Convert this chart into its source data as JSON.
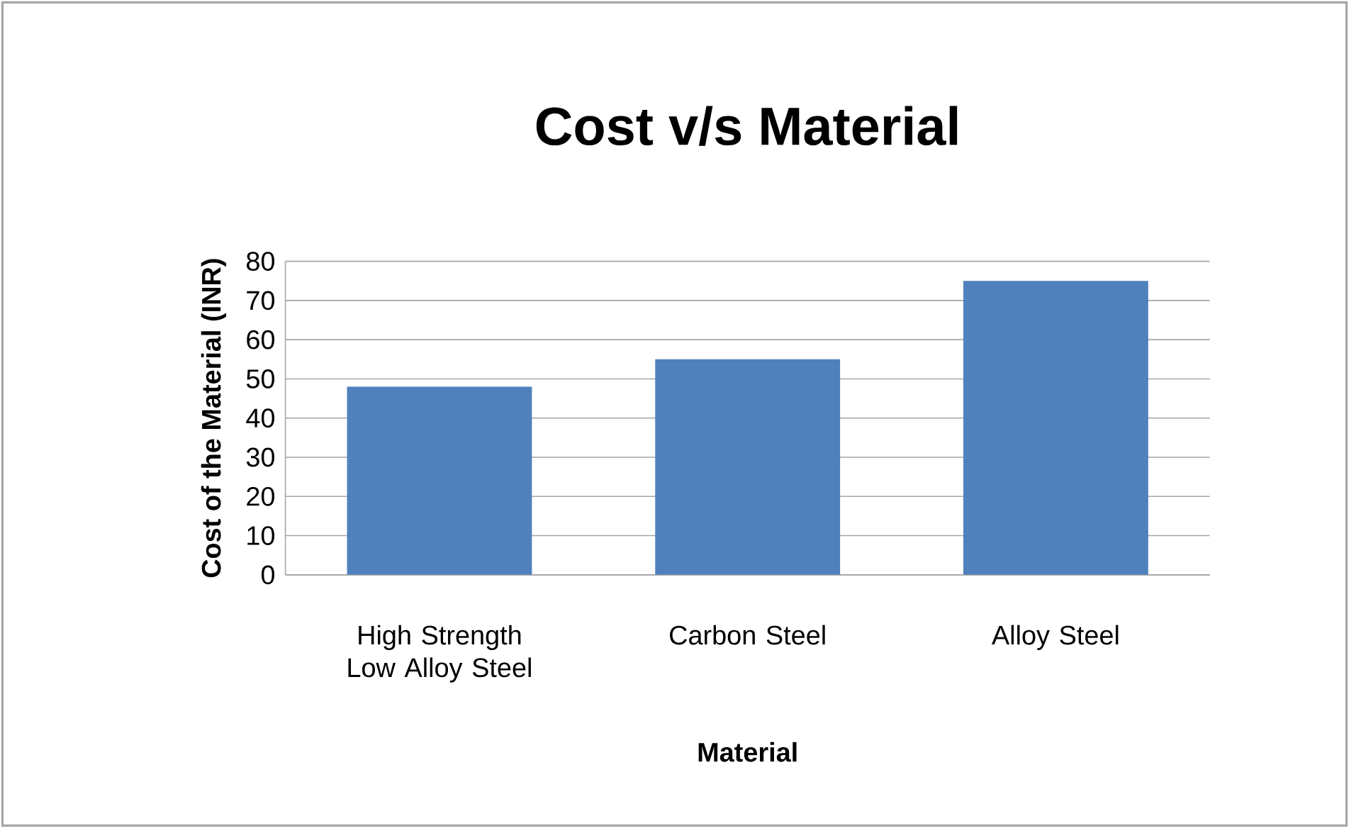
{
  "chart_data": {
    "type": "bar",
    "title": "Cost v/s Material",
    "xlabel": "Material",
    "ylabel": "Cost of the Material (INR)",
    "categories": [
      "High Strength Low Alloy Steel",
      "Carbon Steel",
      "Alloy Steel"
    ],
    "values": [
      48,
      55,
      75
    ],
    "color": "#4f81bd",
    "ylim": [
      0,
      80
    ],
    "yticks": [
      0,
      10,
      20,
      30,
      40,
      50,
      60,
      70,
      80
    ],
    "grid": "y"
  }
}
